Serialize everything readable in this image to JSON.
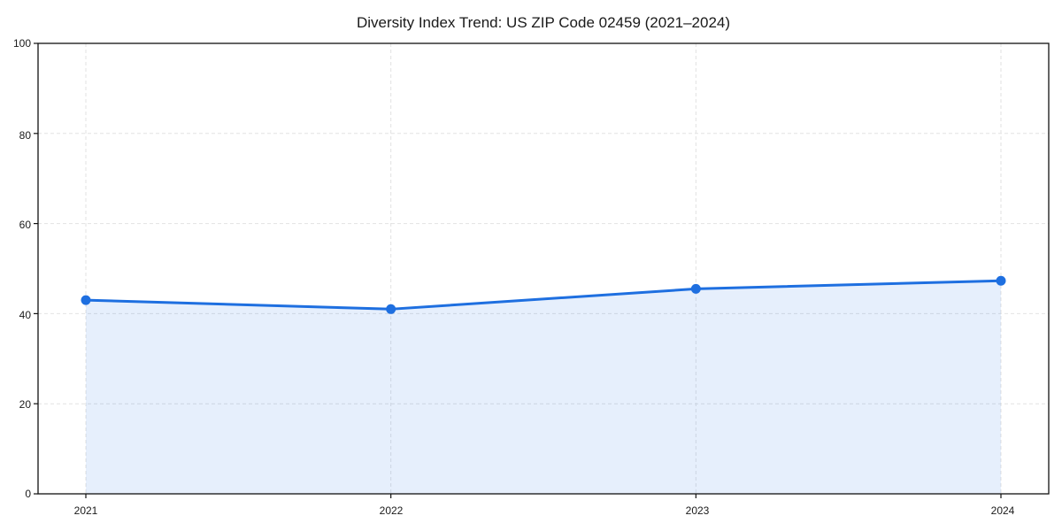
{
  "title": "Diversity Index Trend: US ZIP Code 02459 (2021–2024)",
  "chart_data": {
    "type": "area",
    "title": "Diversity Index Trend: US ZIP Code 02459 (2021–2024)",
    "xlabel": "",
    "ylabel": "",
    "categories": [
      "2021",
      "2022",
      "2023",
      "2024"
    ],
    "series": [
      {
        "name": "Diversity Index",
        "values": [
          43.0,
          41.0,
          45.5,
          47.3
        ]
      }
    ],
    "ylim": [
      0,
      100
    ],
    "y_ticks": [
      0,
      20,
      40,
      60,
      80,
      100
    ],
    "y_tick_labels": [
      "0",
      "20",
      "40",
      "60",
      "80",
      "100"
    ],
    "x_tick_labels": [
      "2021",
      "2022",
      "2023",
      "2024"
    ],
    "grid": "dashed both axes",
    "legend": "none",
    "colors": {
      "line": "#1e6fe0",
      "marker": "#1e6fe0",
      "fill": "#1e6fe0",
      "fill_opacity": 0.11,
      "gridline": "#e2e2e2",
      "spine": "#111111",
      "background": "#ffffff",
      "text": "#1a1a1a"
    }
  }
}
